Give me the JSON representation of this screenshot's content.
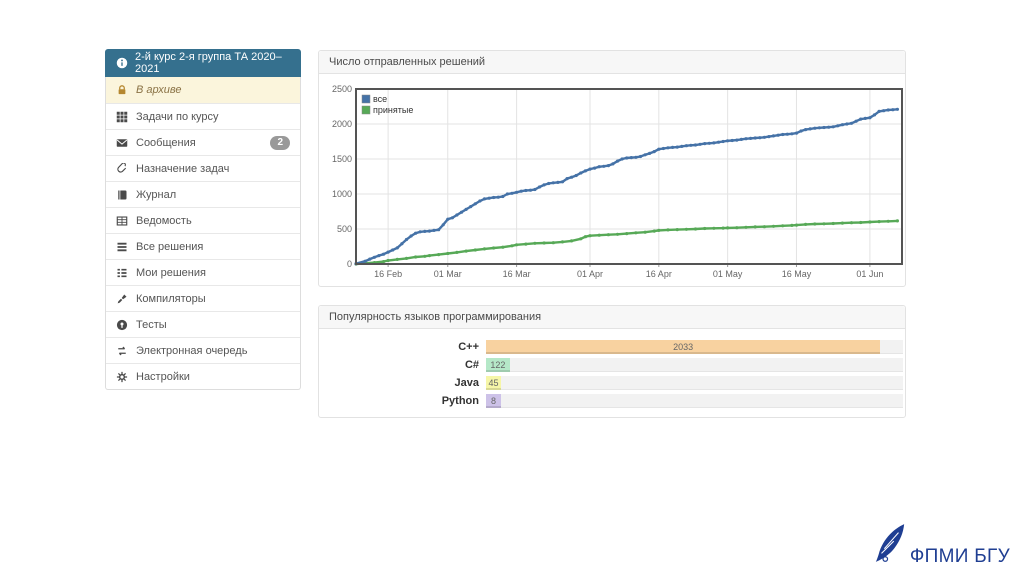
{
  "colors": {
    "header_blue": "#35708e",
    "active_item_bg": "#fbf5dc",
    "active_item_text": "#8a7245",
    "lock_gold": "#b5872f",
    "badge_bg": "#999999",
    "logo_blue": "#1f3e92"
  },
  "sidebar": {
    "header": {
      "label": "2-й курс 2-я группа ТА 2020–2021",
      "icon": "info-circle-icon"
    },
    "items": [
      {
        "key": "archive",
        "label": "В архиве",
        "icon": "lock-icon",
        "active": true
      },
      {
        "key": "course-tasks",
        "label": "Задачи по курсу",
        "icon": "grid-icon"
      },
      {
        "key": "messages",
        "label": "Сообщения",
        "icon": "envelope-icon",
        "badge": "2"
      },
      {
        "key": "assign-tasks",
        "label": "Назначение задач",
        "icon": "paperclip-icon"
      },
      {
        "key": "journal",
        "label": "Журнал",
        "icon": "book-icon"
      },
      {
        "key": "gradebook",
        "label": "Ведомость",
        "icon": "table-icon"
      },
      {
        "key": "all-solutions",
        "label": "Все решения",
        "icon": "list-icon"
      },
      {
        "key": "my-solutions",
        "label": "Мои решения",
        "icon": "list-alt-icon"
      },
      {
        "key": "compilers",
        "label": "Компиляторы",
        "icon": "screwdriver-icon"
      },
      {
        "key": "tests",
        "label": "Тесты",
        "icon": "marker-circle-icon"
      },
      {
        "key": "e-queue",
        "label": "Электронная очередь",
        "icon": "exchange-icon"
      },
      {
        "key": "settings",
        "label": "Настройки",
        "icon": "gear-icon"
      }
    ]
  },
  "panels": {
    "submissions": {
      "title": "Число отправленных решений"
    },
    "languages": {
      "title": "Популярность языков программирования"
    }
  },
  "chart_data": [
    {
      "type": "line",
      "title": "Число отправленных решений",
      "xlabel": "",
      "ylabel": "",
      "grid": true,
      "legend_position": "top-left",
      "ylim": [
        0,
        2500
      ],
      "yticks": [
        0,
        500,
        1000,
        1500,
        2000,
        2500
      ],
      "xlim": [
        0,
        119
      ],
      "xticks": [
        {
          "day": 7,
          "label": "16 Feb"
        },
        {
          "day": 20,
          "label": "01 Mar"
        },
        {
          "day": 35,
          "label": "16 Mar"
        },
        {
          "day": 51,
          "label": "01 Apr"
        },
        {
          "day": 66,
          "label": "16 Apr"
        },
        {
          "day": 81,
          "label": "01 May"
        },
        {
          "day": 96,
          "label": "16 May"
        },
        {
          "day": 112,
          "label": "01 Jun"
        }
      ],
      "series": [
        {
          "name": "все",
          "color": "#4572a7",
          "points": [
            [
              0,
              5
            ],
            [
              2,
              40
            ],
            [
              3,
              70
            ],
            [
              4,
              95
            ],
            [
              5,
              120
            ],
            [
              6,
              140
            ],
            [
              7,
              170
            ],
            [
              8,
              200
            ],
            [
              9,
              230
            ],
            [
              10,
              290
            ],
            [
              11,
              350
            ],
            [
              12,
              400
            ],
            [
              13,
              440
            ],
            [
              14,
              460
            ],
            [
              15,
              465
            ],
            [
              16,
              470
            ],
            [
              17,
              480
            ],
            [
              18,
              490
            ],
            [
              19,
              560
            ],
            [
              20,
              640
            ],
            [
              21,
              660
            ],
            [
              22,
              700
            ],
            [
              23,
              740
            ],
            [
              24,
              780
            ],
            [
              25,
              820
            ],
            [
              26,
              860
            ],
            [
              27,
              900
            ],
            [
              28,
              930
            ],
            [
              29,
              940
            ],
            [
              30,
              950
            ],
            [
              31,
              955
            ],
            [
              32,
              965
            ],
            [
              33,
              1000
            ],
            [
              34,
              1010
            ],
            [
              35,
              1025
            ],
            [
              36,
              1040
            ],
            [
              37,
              1050
            ],
            [
              38,
              1055
            ],
            [
              39,
              1065
            ],
            [
              40,
              1100
            ],
            [
              41,
              1130
            ],
            [
              42,
              1150
            ],
            [
              43,
              1160
            ],
            [
              44,
              1165
            ],
            [
              45,
              1175
            ],
            [
              46,
              1220
            ],
            [
              47,
              1240
            ],
            [
              48,
              1265
            ],
            [
              49,
              1300
            ],
            [
              50,
              1330
            ],
            [
              51,
              1355
            ],
            [
              52,
              1370
            ],
            [
              53,
              1390
            ],
            [
              54,
              1395
            ],
            [
              55,
              1405
            ],
            [
              56,
              1430
            ],
            [
              57,
              1470
            ],
            [
              58,
              1500
            ],
            [
              59,
              1515
            ],
            [
              60,
              1520
            ],
            [
              61,
              1525
            ],
            [
              62,
              1535
            ],
            [
              63,
              1560
            ],
            [
              64,
              1580
            ],
            [
              65,
              1605
            ],
            [
              66,
              1640
            ],
            [
              67,
              1650
            ],
            [
              68,
              1660
            ],
            [
              69,
              1665
            ],
            [
              70,
              1670
            ],
            [
              71,
              1680
            ],
            [
              72,
              1690
            ],
            [
              73,
              1695
            ],
            [
              74,
              1700
            ],
            [
              75,
              1710
            ],
            [
              76,
              1720
            ],
            [
              77,
              1725
            ],
            [
              78,
              1730
            ],
            [
              79,
              1740
            ],
            [
              80,
              1750
            ],
            [
              81,
              1760
            ],
            [
              82,
              1765
            ],
            [
              83,
              1770
            ],
            [
              84,
              1780
            ],
            [
              85,
              1790
            ],
            [
              86,
              1795
            ],
            [
              87,
              1800
            ],
            [
              88,
              1805
            ],
            [
              89,
              1810
            ],
            [
              90,
              1820
            ],
            [
              91,
              1830
            ],
            [
              92,
              1840
            ],
            [
              93,
              1850
            ],
            [
              94,
              1855
            ],
            [
              95,
              1860
            ],
            [
              96,
              1870
            ],
            [
              97,
              1900
            ],
            [
              98,
              1920
            ],
            [
              99,
              1930
            ],
            [
              100,
              1940
            ],
            [
              101,
              1945
            ],
            [
              102,
              1950
            ],
            [
              103,
              1955
            ],
            [
              104,
              1960
            ],
            [
              105,
              1975
            ],
            [
              106,
              1990
            ],
            [
              107,
              2000
            ],
            [
              108,
              2010
            ],
            [
              109,
              2040
            ],
            [
              110,
              2070
            ],
            [
              111,
              2080
            ],
            [
              112,
              2090
            ],
            [
              113,
              2130
            ],
            [
              114,
              2180
            ],
            [
              115,
              2190
            ],
            [
              116,
              2200
            ],
            [
              117,
              2205
            ],
            [
              118,
              2210
            ]
          ]
        },
        {
          "name": "принятые",
          "color": "#57a957",
          "points": [
            [
              0,
              0
            ],
            [
              2,
              10
            ],
            [
              4,
              20
            ],
            [
              6,
              35
            ],
            [
              7,
              50
            ],
            [
              9,
              65
            ],
            [
              11,
              80
            ],
            [
              13,
              100
            ],
            [
              15,
              110
            ],
            [
              16,
              120
            ],
            [
              18,
              135
            ],
            [
              20,
              150
            ],
            [
              22,
              165
            ],
            [
              24,
              185
            ],
            [
              26,
              200
            ],
            [
              28,
              215
            ],
            [
              30,
              228
            ],
            [
              32,
              240
            ],
            [
              34,
              260
            ],
            [
              35,
              275
            ],
            [
              37,
              285
            ],
            [
              39,
              295
            ],
            [
              41,
              300
            ],
            [
              43,
              305
            ],
            [
              45,
              315
            ],
            [
              47,
              330
            ],
            [
              49,
              360
            ],
            [
              50,
              390
            ],
            [
              51,
              405
            ],
            [
              53,
              412
            ],
            [
              55,
              418
            ],
            [
              57,
              425
            ],
            [
              59,
              435
            ],
            [
              61,
              445
            ],
            [
              63,
              455
            ],
            [
              65,
              470
            ],
            [
              66,
              480
            ],
            [
              68,
              487
            ],
            [
              70,
              492
            ],
            [
              72,
              495
            ],
            [
              74,
              500
            ],
            [
              76,
              507
            ],
            [
              78,
              510
            ],
            [
              80,
              513
            ],
            [
              81,
              516
            ],
            [
              83,
              519
            ],
            [
              85,
              525
            ],
            [
              87,
              530
            ],
            [
              89,
              533
            ],
            [
              91,
              538
            ],
            [
              93,
              545
            ],
            [
              95,
              552
            ],
            [
              96,
              556
            ],
            [
              98,
              565
            ],
            [
              100,
              572
            ],
            [
              102,
              575
            ],
            [
              104,
              578
            ],
            [
              106,
              585
            ],
            [
              108,
              590
            ],
            [
              110,
              593
            ],
            [
              112,
              600
            ],
            [
              114,
              606
            ],
            [
              116,
              610
            ],
            [
              118,
              615
            ]
          ]
        }
      ]
    },
    {
      "type": "bar",
      "orientation": "horizontal",
      "title": "Популярность языков программирования",
      "categories": [
        "C++",
        "C#",
        "Java",
        "Python"
      ],
      "values": [
        2033,
        122,
        45,
        8
      ],
      "bar_colors": [
        "#f8d2a0",
        "#b5e8c8",
        "#f6f6a8",
        "#cdc2e8"
      ],
      "xlim": [
        0,
        2150
      ]
    }
  ],
  "logo": {
    "text": "ФПМИ БГУ"
  }
}
